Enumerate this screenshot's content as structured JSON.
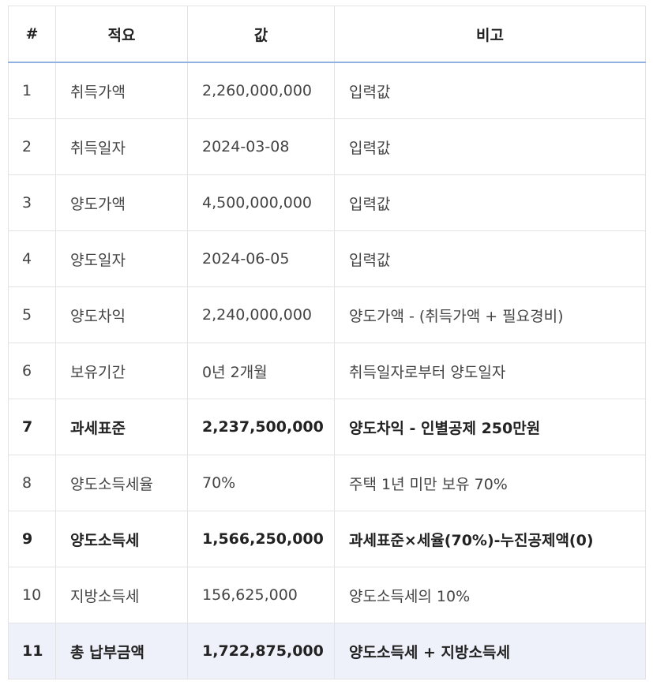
{
  "table": {
    "headers": [
      "#",
      "적요",
      "값",
      "비고"
    ],
    "rows": [
      {
        "no": "1",
        "item": "취득가액",
        "value": "2,260,000,000",
        "note": "입력값"
      },
      {
        "no": "2",
        "item": "취득일자",
        "value": "2024-03-08",
        "note": "입력값"
      },
      {
        "no": "3",
        "item": "양도가액",
        "value": "4,500,000,000",
        "note": "입력값"
      },
      {
        "no": "4",
        "item": "양도일자",
        "value": "2024-06-05",
        "note": "입력값"
      },
      {
        "no": "5",
        "item": "양도차익",
        "value": "2,240,000,000",
        "note": "양도가액 - (취득가액 + 필요경비)"
      },
      {
        "no": "6",
        "item": "보유기간",
        "value": "0년 2개월",
        "note": "취득일자로부터 양도일자"
      },
      {
        "no": "7",
        "item": "과세표준",
        "value": "2,237,500,000",
        "note": "양도차익 - 인별공제 250만원"
      },
      {
        "no": "8",
        "item": "양도소득세율",
        "value": "70%",
        "note": "주택 1년 미만 보유 70%"
      },
      {
        "no": "9",
        "item": "양도소득세",
        "value": "1,566,250,000",
        "note": "과세표준×세율(70%)-누진공제액(0)"
      },
      {
        "no": "10",
        "item": "지방소득세",
        "value": "156,625,000",
        "note": "양도소득세의 10%"
      },
      {
        "no": "11",
        "item": "총 납부금액",
        "value": "1,722,875,000",
        "note": "양도소득세 + 지방소득세"
      }
    ]
  },
  "colors": {
    "header_underline": "#8fb2e0",
    "total_row_bg": "#eef1fa",
    "border": "#e3e3e3"
  }
}
